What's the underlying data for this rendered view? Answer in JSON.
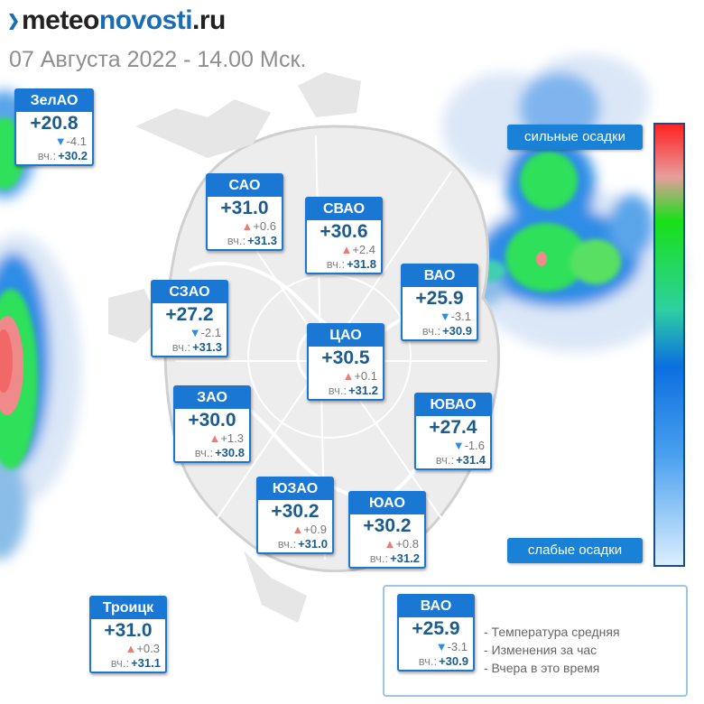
{
  "header": {
    "logo_part1": "meteo",
    "logo_part2": "novosti",
    "logo_part3": ".ru",
    "subtitle": "07 Августа 2022 - 14.00 Мск."
  },
  "districts": [
    {
      "name": "ЗелАО",
      "temp": "+20.8",
      "arrow": "▼",
      "change": "-4.1",
      "yest_label": "вч.:",
      "yest": "+30.2",
      "trend": "down"
    },
    {
      "name": "САО",
      "temp": "+31.0",
      "arrow": "▲",
      "change": "+0.6",
      "yest_label": "вч.:",
      "yest": "+31.3",
      "trend": "up"
    },
    {
      "name": "СВАО",
      "temp": "+30.6",
      "arrow": "▲",
      "change": "+2.4",
      "yest_label": "вч.:",
      "yest": "+31.8",
      "trend": "up"
    },
    {
      "name": "ВАО",
      "temp": "+25.9",
      "arrow": "▼",
      "change": "-3.1",
      "yest_label": "вч.:",
      "yest": "+30.9",
      "trend": "down"
    },
    {
      "name": "СЗАО",
      "temp": "+27.2",
      "arrow": "▼",
      "change": "-2.1",
      "yest_label": "вч.:",
      "yest": "+31.3",
      "trend": "down"
    },
    {
      "name": "ЦАО",
      "temp": "+30.5",
      "arrow": "▲",
      "change": "+0.1",
      "yest_label": "вч.:",
      "yest": "+31.2",
      "trend": "up"
    },
    {
      "name": "ЗАО",
      "temp": "+30.0",
      "arrow": "▲",
      "change": "+1.3",
      "yest_label": "вч.:",
      "yest": "+30.8",
      "trend": "up"
    },
    {
      "name": "ЮВАО",
      "temp": "+27.4",
      "arrow": "▼",
      "change": "-1.6",
      "yest_label": "вч.:",
      "yest": "+31.4",
      "trend": "down"
    },
    {
      "name": "ЮЗАО",
      "temp": "+30.2",
      "arrow": "▲",
      "change": "+0.9",
      "yest_label": "вч.:",
      "yest": "+31.0",
      "trend": "up"
    },
    {
      "name": "ЮАО",
      "temp": "+30.2",
      "arrow": "▲",
      "change": "+0.8",
      "yest_label": "вч.:",
      "yest": "+31.2",
      "trend": "up"
    },
    {
      "name": "Троицк",
      "temp": "+31.0",
      "arrow": "▲",
      "change": "+0.3",
      "yest_label": "вч.:",
      "yest": "+31.1",
      "trend": "up"
    }
  ],
  "scale": {
    "top_label": "сильные осадки",
    "bottom_label": "слабые осадки",
    "colors": [
      "#ff2020",
      "#e89c9c",
      "#18e018",
      "#0b6fe0",
      "#dcefff"
    ]
  },
  "legend": {
    "card": {
      "name": "ВАО",
      "temp": "+25.9",
      "arrow": "▼",
      "change": "-3.1",
      "yest_label": "вч.:",
      "yest": "+30.9"
    },
    "line1": "- Температура средняя",
    "line2": "- Изменения за час",
    "line3": "- Вчера в это время"
  },
  "colors": {
    "accent": "#1a78d4",
    "temp_text": "#1c5c8c",
    "arrow_up": "#e87e78",
    "arrow_down": "#2e8ddc"
  }
}
